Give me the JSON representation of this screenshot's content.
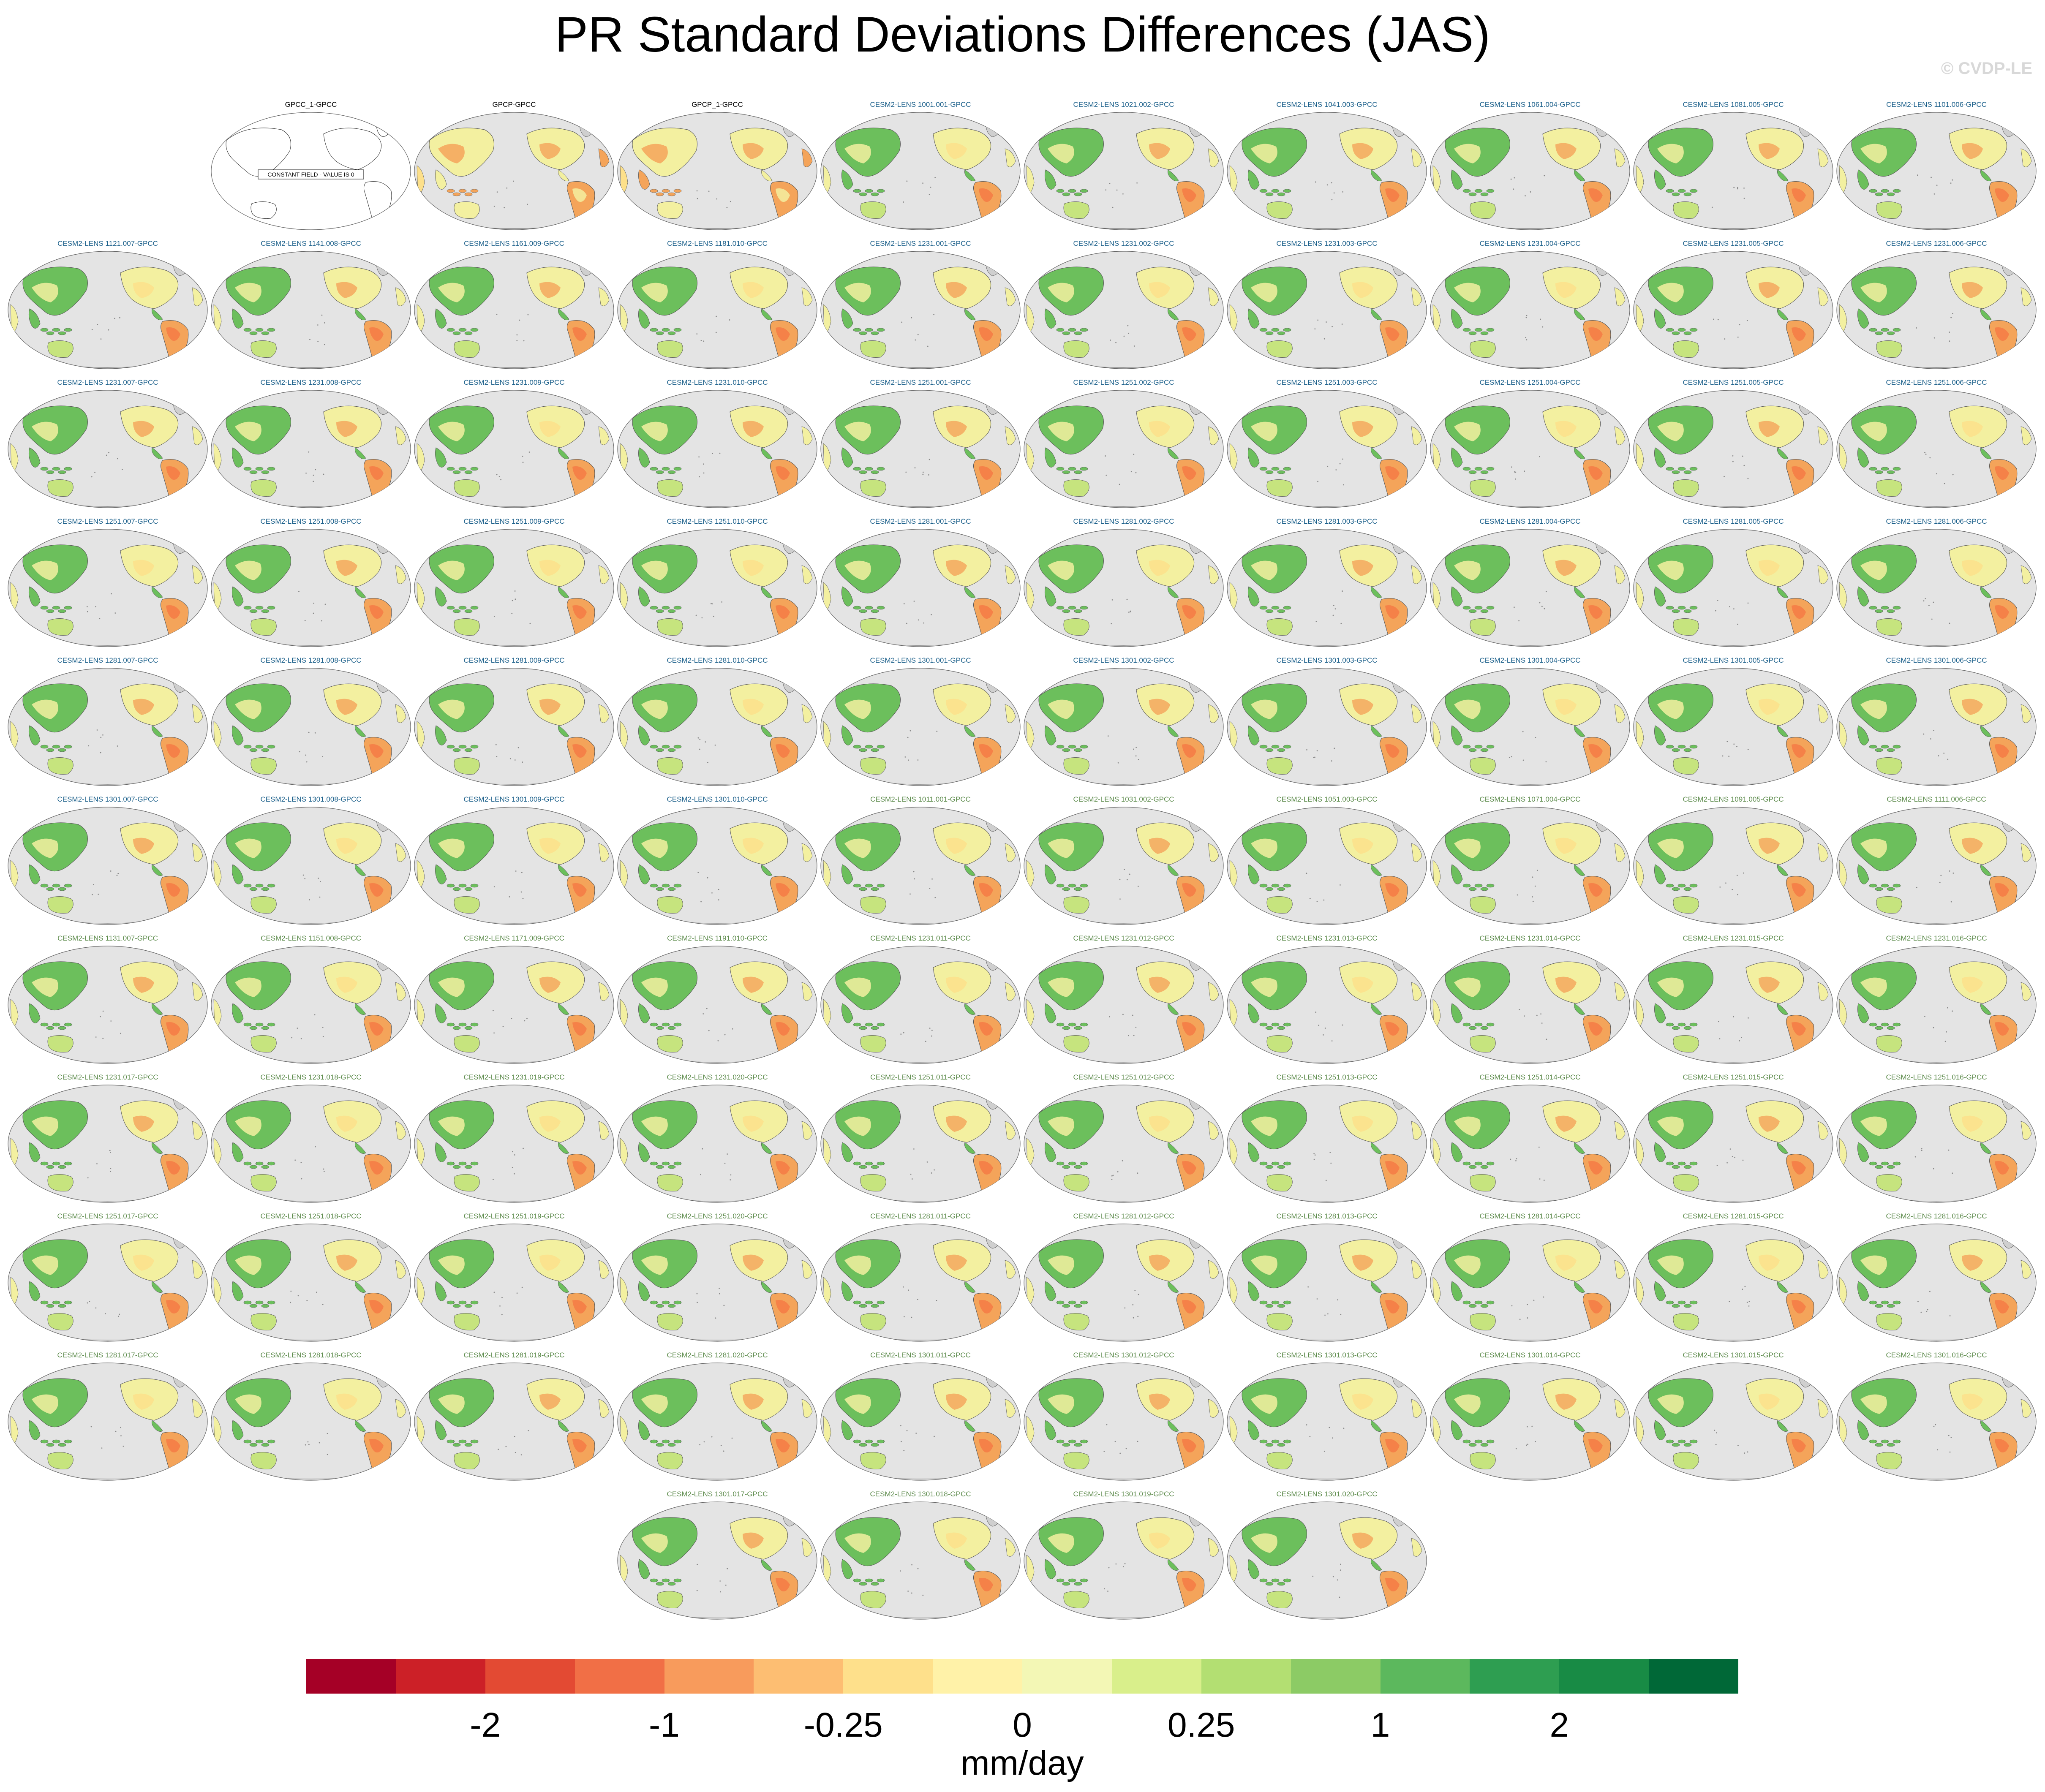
{
  "title": "PR Standard Deviations Differences (JAS)",
  "watermark": "© CVDP-LE",
  "panels": [
    {
      "label": "GPCC_1-GPCC",
      "style": "black",
      "kind": "constant",
      "note": "CONSTANT FIELD - VALUE IS 0"
    },
    {
      "label": "GPCP-GPCC",
      "style": "black",
      "kind": "obs"
    },
    {
      "label": "GPCP_1-GPCC",
      "style": "black",
      "kind": "obs"
    },
    {
      "label": "CESM2-LENS 1001.001-GPCC",
      "style": "blue",
      "kind": "model"
    },
    {
      "label": "CESM2-LENS 1021.002-GPCC",
      "style": "blue",
      "kind": "model"
    },
    {
      "label": "CESM2-LENS 1041.003-GPCC",
      "style": "blue",
      "kind": "model"
    },
    {
      "label": "CESM2-LENS 1061.004-GPCC",
      "style": "blue",
      "kind": "model"
    },
    {
      "label": "CESM2-LENS 1081.005-GPCC",
      "style": "blue",
      "kind": "model"
    },
    {
      "label": "CESM2-LENS 1101.006-GPCC",
      "style": "blue",
      "kind": "model"
    },
    {
      "label": "CESM2-LENS 1121.007-GPCC",
      "style": "blue",
      "kind": "model"
    },
    {
      "label": "CESM2-LENS 1141.008-GPCC",
      "style": "blue",
      "kind": "model"
    },
    {
      "label": "CESM2-LENS 1161.009-GPCC",
      "style": "blue",
      "kind": "model"
    },
    {
      "label": "CESM2-LENS 1181.010-GPCC",
      "style": "blue",
      "kind": "model"
    },
    {
      "label": "CESM2-LENS 1231.001-GPCC",
      "style": "blue",
      "kind": "model"
    },
    {
      "label": "CESM2-LENS 1231.002-GPCC",
      "style": "blue",
      "kind": "model"
    },
    {
      "label": "CESM2-LENS 1231.003-GPCC",
      "style": "blue",
      "kind": "model"
    },
    {
      "label": "CESM2-LENS 1231.004-GPCC",
      "style": "blue",
      "kind": "model"
    },
    {
      "label": "CESM2-LENS 1231.005-GPCC",
      "style": "blue",
      "kind": "model"
    },
    {
      "label": "CESM2-LENS 1231.006-GPCC",
      "style": "blue",
      "kind": "model"
    },
    {
      "label": "CESM2-LENS 1231.007-GPCC",
      "style": "blue",
      "kind": "model"
    },
    {
      "label": "CESM2-LENS 1231.008-GPCC",
      "style": "blue",
      "kind": "model"
    },
    {
      "label": "CESM2-LENS 1231.009-GPCC",
      "style": "blue",
      "kind": "model"
    },
    {
      "label": "CESM2-LENS 1231.010-GPCC",
      "style": "blue",
      "kind": "model"
    },
    {
      "label": "CESM2-LENS 1251.001-GPCC",
      "style": "blue",
      "kind": "model"
    },
    {
      "label": "CESM2-LENS 1251.002-GPCC",
      "style": "blue",
      "kind": "model"
    },
    {
      "label": "CESM2-LENS 1251.003-GPCC",
      "style": "blue",
      "kind": "model"
    },
    {
      "label": "CESM2-LENS 1251.004-GPCC",
      "style": "blue",
      "kind": "model"
    },
    {
      "label": "CESM2-LENS 1251.005-GPCC",
      "style": "blue",
      "kind": "model"
    },
    {
      "label": "CESM2-LENS 1251.006-GPCC",
      "style": "blue",
      "kind": "model"
    },
    {
      "label": "CESM2-LENS 1251.007-GPCC",
      "style": "blue",
      "kind": "model"
    },
    {
      "label": "CESM2-LENS 1251.008-GPCC",
      "style": "blue",
      "kind": "model"
    },
    {
      "label": "CESM2-LENS 1251.009-GPCC",
      "style": "blue",
      "kind": "model"
    },
    {
      "label": "CESM2-LENS 1251.010-GPCC",
      "style": "blue",
      "kind": "model"
    },
    {
      "label": "CESM2-LENS 1281.001-GPCC",
      "style": "blue",
      "kind": "model"
    },
    {
      "label": "CESM2-LENS 1281.002-GPCC",
      "style": "blue",
      "kind": "model"
    },
    {
      "label": "CESM2-LENS 1281.003-GPCC",
      "style": "blue",
      "kind": "model"
    },
    {
      "label": "CESM2-LENS 1281.004-GPCC",
      "style": "blue",
      "kind": "model"
    },
    {
      "label": "CESM2-LENS 1281.005-GPCC",
      "style": "blue",
      "kind": "model"
    },
    {
      "label": "CESM2-LENS 1281.006-GPCC",
      "style": "blue",
      "kind": "model"
    },
    {
      "label": "CESM2-LENS 1281.007-GPCC",
      "style": "blue",
      "kind": "model"
    },
    {
      "label": "CESM2-LENS 1281.008-GPCC",
      "style": "blue",
      "kind": "model"
    },
    {
      "label": "CESM2-LENS 1281.009-GPCC",
      "style": "blue",
      "kind": "model"
    },
    {
      "label": "CESM2-LENS 1281.010-GPCC",
      "style": "blue",
      "kind": "model"
    },
    {
      "label": "CESM2-LENS 1301.001-GPCC",
      "style": "blue",
      "kind": "model"
    },
    {
      "label": "CESM2-LENS 1301.002-GPCC",
      "style": "blue",
      "kind": "model"
    },
    {
      "label": "CESM2-LENS 1301.003-GPCC",
      "style": "blue",
      "kind": "model"
    },
    {
      "label": "CESM2-LENS 1301.004-GPCC",
      "style": "blue",
      "kind": "model"
    },
    {
      "label": "CESM2-LENS 1301.005-GPCC",
      "style": "blue",
      "kind": "model"
    },
    {
      "label": "CESM2-LENS 1301.006-GPCC",
      "style": "blue",
      "kind": "model"
    },
    {
      "label": "CESM2-LENS 1301.007-GPCC",
      "style": "blue",
      "kind": "model"
    },
    {
      "label": "CESM2-LENS 1301.008-GPCC",
      "style": "blue",
      "kind": "model"
    },
    {
      "label": "CESM2-LENS 1301.009-GPCC",
      "style": "blue",
      "kind": "model"
    },
    {
      "label": "CESM2-LENS 1301.010-GPCC",
      "style": "blue",
      "kind": "model"
    },
    {
      "label": "CESM2-LENS 1011.001-GPCC",
      "style": "green",
      "kind": "model"
    },
    {
      "label": "CESM2-LENS 1031.002-GPCC",
      "style": "green",
      "kind": "model"
    },
    {
      "label": "CESM2-LENS 1051.003-GPCC",
      "style": "green",
      "kind": "model"
    },
    {
      "label": "CESM2-LENS 1071.004-GPCC",
      "style": "green",
      "kind": "model"
    },
    {
      "label": "CESM2-LENS 1091.005-GPCC",
      "style": "green",
      "kind": "model"
    },
    {
      "label": "CESM2-LENS 1111.006-GPCC",
      "style": "green",
      "kind": "model"
    },
    {
      "label": "CESM2-LENS 1131.007-GPCC",
      "style": "green",
      "kind": "model"
    },
    {
      "label": "CESM2-LENS 1151.008-GPCC",
      "style": "green",
      "kind": "model"
    },
    {
      "label": "CESM2-LENS 1171.009-GPCC",
      "style": "green",
      "kind": "model"
    },
    {
      "label": "CESM2-LENS 1191.010-GPCC",
      "style": "green",
      "kind": "model"
    },
    {
      "label": "CESM2-LENS 1231.011-GPCC",
      "style": "green",
      "kind": "model"
    },
    {
      "label": "CESM2-LENS 1231.012-GPCC",
      "style": "green",
      "kind": "model"
    },
    {
      "label": "CESM2-LENS 1231.013-GPCC",
      "style": "green",
      "kind": "model"
    },
    {
      "label": "CESM2-LENS 1231.014-GPCC",
      "style": "green",
      "kind": "model"
    },
    {
      "label": "CESM2-LENS 1231.015-GPCC",
      "style": "green",
      "kind": "model"
    },
    {
      "label": "CESM2-LENS 1231.016-GPCC",
      "style": "green",
      "kind": "model"
    },
    {
      "label": "CESM2-LENS 1231.017-GPCC",
      "style": "green",
      "kind": "model"
    },
    {
      "label": "CESM2-LENS 1231.018-GPCC",
      "style": "green",
      "kind": "model"
    },
    {
      "label": "CESM2-LENS 1231.019-GPCC",
      "style": "green",
      "kind": "model"
    },
    {
      "label": "CESM2-LENS 1231.020-GPCC",
      "style": "green",
      "kind": "model"
    },
    {
      "label": "CESM2-LENS 1251.011-GPCC",
      "style": "green",
      "kind": "model"
    },
    {
      "label": "CESM2-LENS 1251.012-GPCC",
      "style": "green",
      "kind": "model"
    },
    {
      "label": "CESM2-LENS 1251.013-GPCC",
      "style": "green",
      "kind": "model"
    },
    {
      "label": "CESM2-LENS 1251.014-GPCC",
      "style": "green",
      "kind": "model"
    },
    {
      "label": "CESM2-LENS 1251.015-GPCC",
      "style": "green",
      "kind": "model"
    },
    {
      "label": "CESM2-LENS 1251.016-GPCC",
      "style": "green",
      "kind": "model"
    },
    {
      "label": "CESM2-LENS 1251.017-GPCC",
      "style": "green",
      "kind": "model"
    },
    {
      "label": "CESM2-LENS 1251.018-GPCC",
      "style": "green",
      "kind": "model"
    },
    {
      "label": "CESM2-LENS 1251.019-GPCC",
      "style": "green",
      "kind": "model"
    },
    {
      "label": "CESM2-LENS 1251.020-GPCC",
      "style": "green",
      "kind": "model"
    },
    {
      "label": "CESM2-LENS 1281.011-GPCC",
      "style": "green",
      "kind": "model"
    },
    {
      "label": "CESM2-LENS 1281.012-GPCC",
      "style": "green",
      "kind": "model"
    },
    {
      "label": "CESM2-LENS 1281.013-GPCC",
      "style": "green",
      "kind": "model"
    },
    {
      "label": "CESM2-LENS 1281.014-GPCC",
      "style": "green",
      "kind": "model"
    },
    {
      "label": "CESM2-LENS 1281.015-GPCC",
      "style": "green",
      "kind": "model"
    },
    {
      "label": "CESM2-LENS 1281.016-GPCC",
      "style": "green",
      "kind": "model"
    },
    {
      "label": "CESM2-LENS 1281.017-GPCC",
      "style": "green",
      "kind": "model"
    },
    {
      "label": "CESM2-LENS 1281.018-GPCC",
      "style": "green",
      "kind": "model"
    },
    {
      "label": "CESM2-LENS 1281.019-GPCC",
      "style": "green",
      "kind": "model"
    },
    {
      "label": "CESM2-LENS 1281.020-GPCC",
      "style": "green",
      "kind": "model"
    },
    {
      "label": "CESM2-LENS 1301.011-GPCC",
      "style": "green",
      "kind": "model"
    },
    {
      "label": "CESM2-LENS 1301.012-GPCC",
      "style": "green",
      "kind": "model"
    },
    {
      "label": "CESM2-LENS 1301.013-GPCC",
      "style": "green",
      "kind": "model"
    },
    {
      "label": "CESM2-LENS 1301.014-GPCC",
      "style": "green",
      "kind": "model"
    },
    {
      "label": "CESM2-LENS 1301.015-GPCC",
      "style": "green",
      "kind": "model"
    },
    {
      "label": "CESM2-LENS 1301.016-GPCC",
      "style": "green",
      "kind": "model"
    },
    {
      "label": "CESM2-LENS 1301.017-GPCC",
      "style": "green",
      "kind": "model"
    },
    {
      "label": "CESM2-LENS 1301.018-GPCC",
      "style": "green",
      "kind": "model"
    },
    {
      "label": "CESM2-LENS 1301.019-GPCC",
      "style": "green",
      "kind": "model"
    },
    {
      "label": "CESM2-LENS 1301.020-GPCC",
      "style": "green",
      "kind": "model"
    }
  ],
  "colorbar": {
    "colors": [
      "#a50026",
      "#cc2027",
      "#e34a33",
      "#f16f46",
      "#f89b5c",
      "#fdbe72",
      "#fee08b",
      "#fff2a8",
      "#f3f7b5",
      "#d9ef8b",
      "#b3df72",
      "#8ccb65",
      "#5cb85d",
      "#2e9e51",
      "#188b45",
      "#006837"
    ],
    "ticks": [
      "-2",
      "-1",
      "-0.25",
      "0",
      "0.25",
      "1",
      "2"
    ],
    "units": "mm/day"
  },
  "map_colors": {
    "ocean": "#e4e4e4",
    "land_wet_green": "#6cbf5c",
    "land_dry_orange": "#f4a45a",
    "land_neutral": "#f3f0a0",
    "coast": "#555555"
  }
}
